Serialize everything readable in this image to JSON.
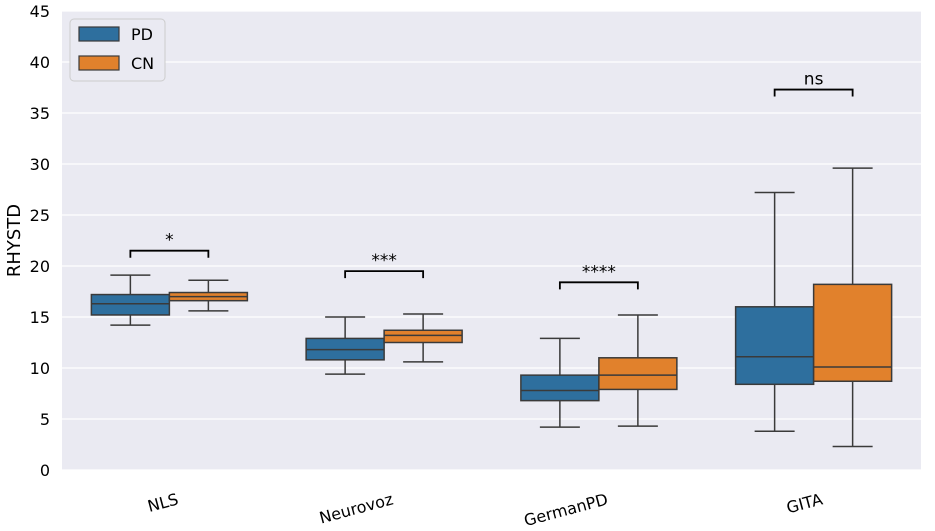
{
  "chart_data": {
    "type": "box",
    "title": "",
    "xlabel": "",
    "ylabel": "RHYSTD",
    "ylim": [
      0,
      45
    ],
    "yticks": [
      0,
      5,
      10,
      15,
      20,
      25,
      30,
      35,
      40,
      45
    ],
    "grid": true,
    "legend_position": "top-left",
    "categories": [
      "NLS",
      "Neurovoz",
      "GermanPD",
      "GITA"
    ],
    "series": [
      {
        "name": "PD",
        "color": "#2e6f9e",
        "boxes": [
          {
            "min": 14.2,
            "q1": 15.2,
            "median": 16.3,
            "q3": 17.2,
            "max": 19.1
          },
          {
            "min": 9.4,
            "q1": 10.8,
            "median": 11.8,
            "q3": 12.9,
            "max": 15.0
          },
          {
            "min": 4.2,
            "q1": 6.8,
            "median": 7.8,
            "q3": 9.3,
            "max": 12.9
          },
          {
            "min": 3.8,
            "q1": 8.4,
            "median": 11.1,
            "q3": 16.0,
            "max": 27.2
          }
        ]
      },
      {
        "name": "CN",
        "color": "#e1812c",
        "boxes": [
          {
            "min": 15.6,
            "q1": 16.6,
            "median": 17.0,
            "q3": 17.4,
            "max": 18.6
          },
          {
            "min": 10.6,
            "q1": 12.5,
            "median": 13.2,
            "q3": 13.7,
            "max": 15.3
          },
          {
            "min": 4.3,
            "q1": 7.9,
            "median": 9.3,
            "q3": 11.0,
            "max": 15.2
          },
          {
            "min": 2.3,
            "q1": 8.7,
            "median": 10.1,
            "q3": 18.2,
            "max": 29.6
          }
        ]
      }
    ],
    "annotations": [
      {
        "category": "NLS",
        "label": "*",
        "y": 21.5
      },
      {
        "category": "Neurovoz",
        "label": "***",
        "y": 19.5
      },
      {
        "category": "GermanPD",
        "label": "****",
        "y": 18.4
      },
      {
        "category": "GITA",
        "label": "ns",
        "y": 37.3
      }
    ]
  }
}
